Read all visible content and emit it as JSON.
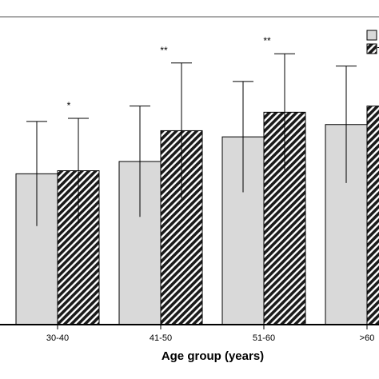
{
  "chart_data": {
    "type": "bar",
    "title": "",
    "xlabel": "Age group (years)",
    "ylabel": "",
    "categories": [
      "30-40",
      "41-50",
      "51-60",
      ">60"
    ],
    "ylim": [
      0,
      100
    ],
    "grid": false,
    "legend_position": "top-right",
    "series": [
      {
        "pattern": "solid",
        "fill": "#d9d9d9",
        "values": [
          49,
          53,
          61,
          65
        ],
        "errors": [
          17,
          18,
          18,
          19
        ]
      },
      {
        "pattern": "diagonal-hatch",
        "fill": "#1a1a1a",
        "values": [
          50,
          63,
          69,
          71
        ],
        "errors": [
          17,
          22,
          19,
          19
        ]
      }
    ],
    "significance": [
      "*",
      "**",
      "**",
      "*"
    ]
  }
}
